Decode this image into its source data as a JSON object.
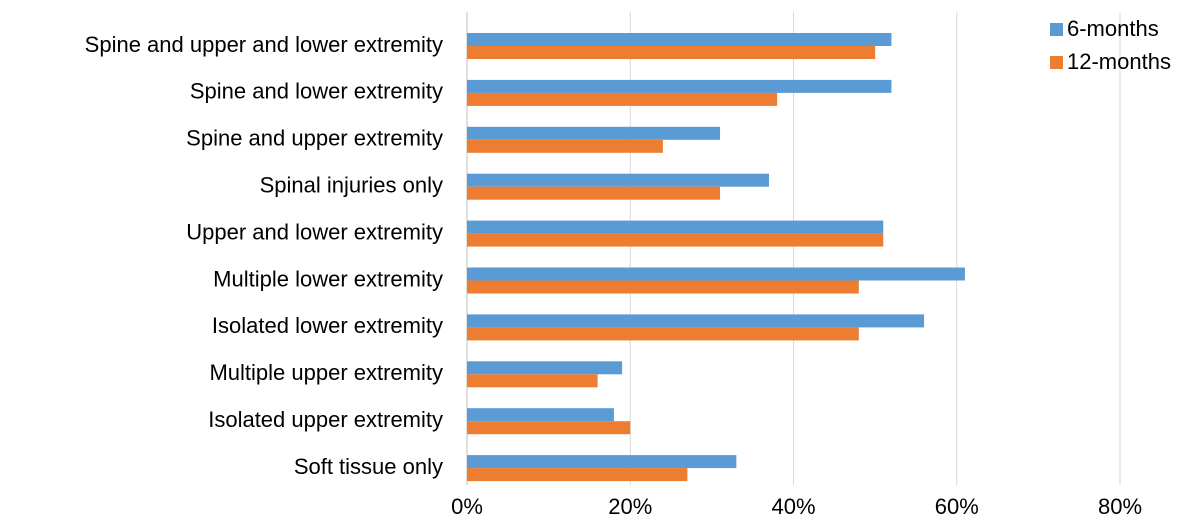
{
  "chart_data": {
    "type": "bar",
    "orientation": "horizontal",
    "categories": [
      "Spine and upper and lower extremity",
      "Spine and lower extremity",
      "Spine and upper extremity",
      "Spinal injuries only",
      "Upper and lower extremity",
      "Multiple lower extremity",
      "Isolated lower extremity",
      "Multiple upper extremity",
      "Isolated upper extremity",
      "Soft tissue only"
    ],
    "series": [
      {
        "name": "6-months",
        "color": "#5b9bd5",
        "values": [
          52,
          52,
          31,
          37,
          51,
          61,
          56,
          19,
          18,
          33
        ]
      },
      {
        "name": "12-months",
        "color": "#ed7d31",
        "values": [
          50,
          38,
          24,
          31,
          51,
          48,
          48,
          16,
          20,
          27
        ]
      }
    ],
    "xlim": [
      0,
      80
    ],
    "x_ticks": [
      "0%",
      "20%",
      "40%",
      "60%",
      "80%"
    ],
    "x_tick_values": [
      0,
      20,
      40,
      60,
      80
    ],
    "grid": "vertical",
    "legend_position": "top-right",
    "title": "",
    "xlabel": "",
    "ylabel": ""
  }
}
